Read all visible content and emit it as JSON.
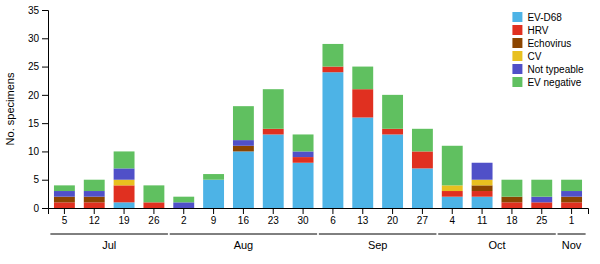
{
  "chart_data": {
    "type": "bar",
    "stacked": true,
    "categories": [
      "5",
      "12",
      "19",
      "26",
      "2",
      "9",
      "16",
      "23",
      "30",
      "6",
      "13",
      "20",
      "27",
      "4",
      "11",
      "18",
      "25",
      "1"
    ],
    "groups": [
      {
        "label": "Jul",
        "span": 4
      },
      {
        "label": "Aug",
        "span": 5
      },
      {
        "label": "Sep",
        "span": 4
      },
      {
        "label": "Oct",
        "span": 4
      },
      {
        "label": "Nov",
        "span": 1
      }
    ],
    "series": [
      {
        "name": "EV-D68",
        "color": "#4db3e6",
        "values": [
          0,
          0,
          1,
          0,
          0,
          5,
          10,
          13,
          8,
          24,
          16,
          13,
          7,
          2,
          2,
          0,
          0,
          0
        ]
      },
      {
        "name": "HRV",
        "color": "#e03020",
        "values": [
          1,
          1,
          3,
          1,
          0,
          0,
          0,
          1,
          1,
          1,
          5,
          1,
          3,
          1,
          1,
          1,
          1,
          1
        ]
      },
      {
        "name": "Echovirus",
        "color": "#8B4500",
        "values": [
          1,
          1,
          0,
          0,
          0,
          0,
          1,
          0,
          0,
          0,
          0,
          0,
          0,
          0,
          1,
          1,
          0,
          1
        ]
      },
      {
        "name": "CV",
        "color": "#e8c020",
        "values": [
          0,
          0,
          1,
          0,
          0,
          0,
          0,
          0,
          0,
          0,
          0,
          0,
          0,
          1,
          1,
          0,
          0,
          0
        ]
      },
      {
        "name": "Not typeable",
        "color": "#5050c8",
        "values": [
          1,
          1,
          2,
          0,
          1,
          0,
          1,
          0,
          1,
          0,
          0,
          0,
          0,
          0,
          3,
          0,
          1,
          1
        ]
      },
      {
        "name": "EV negative",
        "color": "#60c060",
        "values": [
          1,
          2,
          3,
          3,
          1,
          1,
          6,
          7,
          3,
          4,
          4,
          6,
          4,
          7,
          0,
          3,
          3,
          2
        ]
      }
    ],
    "ylim": [
      0,
      35
    ],
    "yticks": [
      0,
      5,
      10,
      15,
      20,
      25,
      30,
      35
    ],
    "ylabel": "No. specimens",
    "grid": false,
    "legend": "upper right"
  }
}
